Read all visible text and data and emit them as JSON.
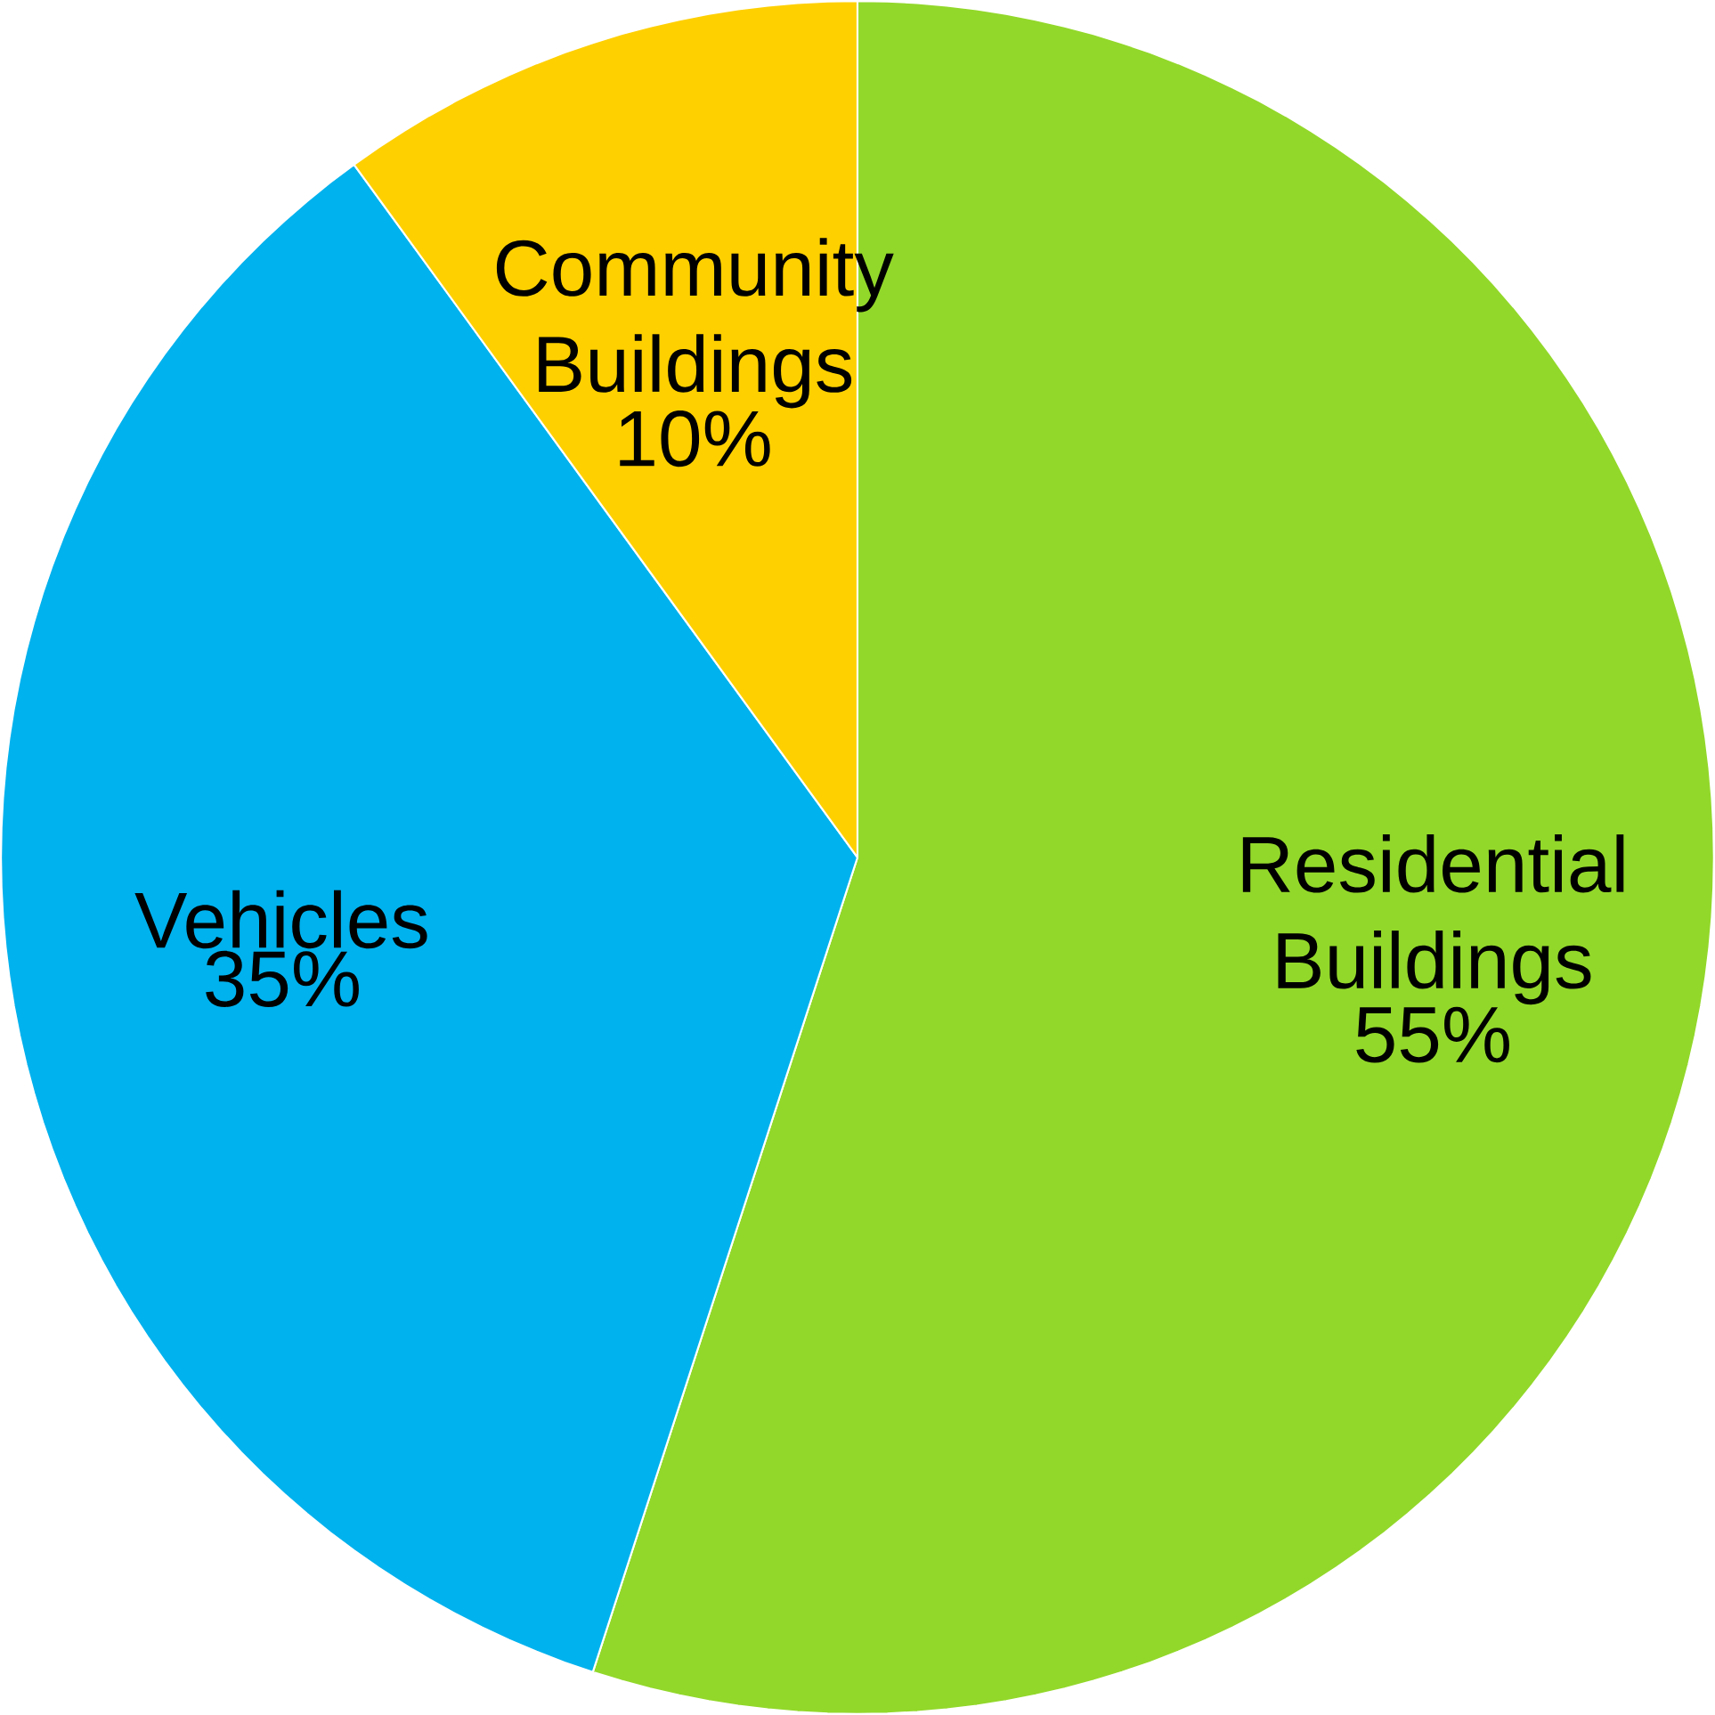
{
  "chart_data": {
    "type": "pie",
    "categories": [
      "Residential Buildings",
      "Vehicles",
      "Community Buildings"
    ],
    "values": [
      55,
      35,
      10
    ],
    "value_labels": [
      "55%",
      "35%",
      "10%"
    ],
    "colors": [
      "#92d82a",
      "#00b2ee",
      "#ffd000"
    ]
  }
}
